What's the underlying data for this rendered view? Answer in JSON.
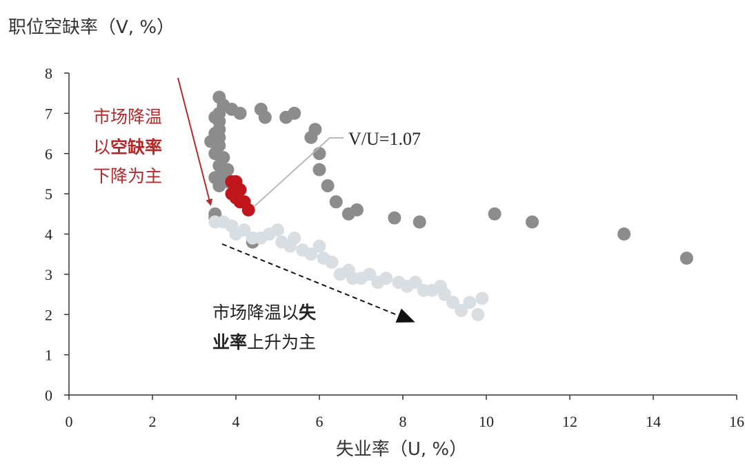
{
  "chart_data": {
    "type": "scatter",
    "ylabel": "职位空缺率（V, %）",
    "xlabel": "失业率（U, %）",
    "xlim": [
      0,
      16
    ],
    "ylim": [
      0,
      8
    ],
    "xticks": [
      "0",
      "2",
      "4",
      "6",
      "8",
      "10",
      "12",
      "14",
      "16"
    ],
    "yticks": [
      "0",
      "1",
      "2",
      "3",
      "4",
      "5",
      "6",
      "7",
      "8"
    ],
    "grid": false,
    "series": [
      {
        "color": "#8c8c8c",
        "points": [
          [
            3.5,
            4.4
          ],
          [
            3.5,
            4.5
          ],
          [
            3.6,
            7.4
          ],
          [
            3.7,
            7.2
          ],
          [
            3.9,
            7.1
          ],
          [
            4.1,
            7.0
          ],
          [
            3.6,
            7.0
          ],
          [
            3.5,
            6.9
          ],
          [
            3.6,
            6.8
          ],
          [
            3.6,
            6.6
          ],
          [
            3.5,
            6.5
          ],
          [
            3.6,
            6.4
          ],
          [
            3.4,
            6.3
          ],
          [
            3.6,
            6.2
          ],
          [
            3.5,
            6.0
          ],
          [
            3.7,
            5.9
          ],
          [
            3.6,
            5.7
          ],
          [
            3.8,
            5.6
          ],
          [
            3.7,
            5.5
          ],
          [
            3.5,
            5.4
          ],
          [
            3.8,
            5.3
          ],
          [
            3.6,
            5.2
          ],
          [
            4.6,
            7.1
          ],
          [
            4.7,
            6.9
          ],
          [
            5.2,
            6.9
          ],
          [
            5.4,
            7.0
          ],
          [
            5.9,
            6.6
          ],
          [
            5.8,
            6.4
          ],
          [
            6.0,
            6.0
          ],
          [
            6.0,
            5.6
          ],
          [
            6.2,
            5.2
          ],
          [
            6.4,
            4.8
          ],
          [
            6.7,
            4.5
          ],
          [
            6.9,
            4.6
          ],
          [
            7.8,
            4.4
          ],
          [
            8.4,
            4.3
          ],
          [
            10.2,
            4.5
          ],
          [
            11.1,
            4.3
          ],
          [
            13.3,
            4.0
          ],
          [
            14.8,
            3.4
          ],
          [
            4.4,
            3.8
          ]
        ]
      },
      {
        "color": "#d9dee3",
        "points": [
          [
            3.5,
            4.3
          ],
          [
            3.7,
            4.3
          ],
          [
            3.9,
            4.2
          ],
          [
            4.0,
            4.0
          ],
          [
            4.2,
            4.1
          ],
          [
            4.4,
            3.9
          ],
          [
            4.6,
            3.9
          ],
          [
            4.8,
            4.0
          ],
          [
            5.0,
            4.1
          ],
          [
            5.1,
            3.8
          ],
          [
            5.3,
            3.7
          ],
          [
            5.4,
            3.9
          ],
          [
            5.6,
            3.6
          ],
          [
            5.8,
            3.5
          ],
          [
            6.0,
            3.7
          ],
          [
            6.1,
            3.4
          ],
          [
            6.3,
            3.3
          ],
          [
            6.5,
            3.0
          ],
          [
            6.7,
            3.1
          ],
          [
            6.8,
            2.9
          ],
          [
            7.0,
            2.9
          ],
          [
            7.2,
            3.0
          ],
          [
            7.4,
            2.8
          ],
          [
            7.6,
            2.9
          ],
          [
            7.9,
            2.8
          ],
          [
            8.1,
            2.7
          ],
          [
            8.3,
            2.8
          ],
          [
            8.5,
            2.6
          ],
          [
            8.7,
            2.6
          ],
          [
            8.9,
            2.7
          ],
          [
            9.0,
            2.5
          ],
          [
            9.2,
            2.3
          ],
          [
            9.4,
            2.1
          ],
          [
            9.6,
            2.3
          ],
          [
            9.8,
            2.0
          ],
          [
            9.9,
            2.4
          ]
        ]
      },
      {
        "color": "#c0161b",
        "points": [
          [
            3.9,
            5.3
          ],
          [
            4.0,
            5.3
          ],
          [
            4.1,
            5.1
          ],
          [
            3.9,
            5.0
          ],
          [
            4.0,
            4.9
          ],
          [
            4.1,
            4.8
          ],
          [
            4.2,
            4.8
          ],
          [
            4.3,
            4.6
          ]
        ]
      }
    ],
    "annotations": {
      "vu_label": "V/U=1.07",
      "red_line1": "市场降温",
      "red_line2_a": "以",
      "red_line2_b": "空缺率",
      "red_line3": "下降为主",
      "dark_line1_a": "市场降温以",
      "dark_line1_b": "失",
      "dark_line2_a": "业率",
      "dark_line2_b": "上升为主"
    }
  }
}
